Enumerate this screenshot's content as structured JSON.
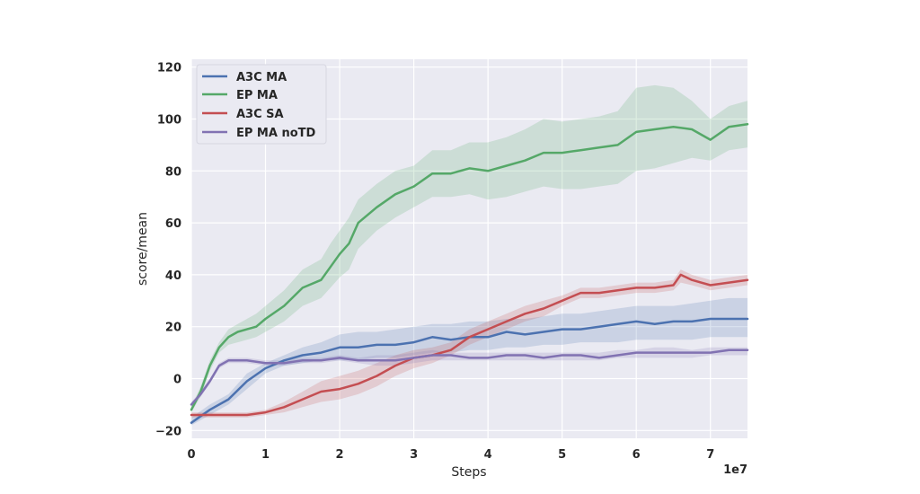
{
  "chart_data": {
    "type": "line",
    "xlabel": "Steps",
    "ylabel": "score/mean",
    "x_offset_label": "1e7",
    "xlim": [
      0,
      7.5
    ],
    "ylim": [
      -23,
      123
    ],
    "xticks": [
      0,
      1,
      2,
      3,
      4,
      5,
      6,
      7
    ],
    "xtick_labels": [
      "0",
      "1",
      "2",
      "3",
      "4",
      "5",
      "6",
      "7"
    ],
    "yticks": [
      -20,
      0,
      20,
      40,
      60,
      80,
      100,
      120
    ],
    "ytick_labels": [
      "−20",
      "0",
      "20",
      "40",
      "60",
      "80",
      "100",
      "120"
    ],
    "grid": true,
    "legend_position": "upper-left",
    "series": [
      {
        "name": "A3C MA",
        "color": "#4c72b0",
        "x": [
          0,
          0.25,
          0.5,
          0.75,
          1.0,
          1.25,
          1.5,
          1.75,
          2.0,
          2.25,
          2.5,
          2.75,
          3.0,
          3.25,
          3.5,
          3.75,
          4.0,
          4.25,
          4.5,
          4.75,
          5.0,
          5.25,
          5.5,
          5.75,
          6.0,
          6.25,
          6.5,
          6.75,
          7.0,
          7.25,
          7.5
        ],
        "y": [
          -17,
          -12,
          -8,
          -1,
          4,
          7,
          9,
          10,
          12,
          12,
          13,
          13,
          14,
          16,
          15,
          16,
          16,
          18,
          17,
          18,
          19,
          19,
          20,
          21,
          22,
          21,
          22,
          22,
          23,
          23,
          23
        ],
        "lower": [
          -18,
          -14,
          -10,
          -4,
          2,
          5,
          6,
          7,
          7,
          7,
          8,
          8,
          9,
          10,
          10,
          11,
          11,
          12,
          12,
          13,
          13,
          14,
          14,
          14,
          15,
          15,
          15,
          15,
          16,
          16,
          16
        ],
        "upper": [
          -15,
          -10,
          -6,
          2,
          6,
          9,
          12,
          14,
          17,
          18,
          18,
          19,
          20,
          21,
          21,
          22,
          22,
          23,
          23,
          24,
          25,
          25,
          26,
          27,
          28,
          28,
          28,
          29,
          30,
          31,
          31
        ]
      },
      {
        "name": "EP MA",
        "color": "#55a868",
        "x": [
          0,
          0.125,
          0.25,
          0.375,
          0.5,
          0.625,
          0.75,
          0.875,
          1.0,
          1.25,
          1.5,
          1.75,
          1.875,
          2.0,
          2.125,
          2.25,
          2.5,
          2.75,
          3.0,
          3.25,
          3.5,
          3.75,
          4.0,
          4.25,
          4.5,
          4.75,
          5.0,
          5.25,
          5.5,
          5.75,
          6.0,
          6.25,
          6.5,
          6.75,
          7.0,
          7.25,
          7.5
        ],
        "y": [
          -12,
          -5,
          5,
          12,
          16,
          18,
          19,
          20,
          23,
          28,
          35,
          38,
          43,
          48,
          52,
          60,
          66,
          71,
          74,
          79,
          79,
          81,
          80,
          82,
          84,
          87,
          87,
          88,
          89,
          90,
          95,
          96,
          97,
          96,
          92,
          97,
          98
        ],
        "lower": [
          -13,
          -7,
          3,
          10,
          13,
          14,
          15,
          16,
          18,
          22,
          28,
          31,
          35,
          39,
          42,
          50,
          57,
          62,
          66,
          70,
          70,
          71,
          69,
          70,
          72,
          74,
          73,
          73,
          74,
          75,
          80,
          81,
          83,
          85,
          84,
          88,
          89
        ],
        "upper": [
          -11,
          -3,
          7,
          14,
          19,
          21,
          23,
          25,
          28,
          34,
          42,
          46,
          52,
          57,
          62,
          69,
          75,
          80,
          82,
          88,
          88,
          91,
          91,
          93,
          96,
          100,
          99,
          100,
          101,
          103,
          112,
          113,
          112,
          107,
          100,
          105,
          107
        ]
      },
      {
        "name": "A3C SA",
        "color": "#c44e52",
        "x": [
          0,
          0.25,
          0.5,
          0.75,
          1.0,
          1.25,
          1.5,
          1.75,
          2.0,
          2.25,
          2.5,
          2.75,
          3.0,
          3.25,
          3.5,
          3.75,
          4.0,
          4.25,
          4.5,
          4.75,
          5.0,
          5.25,
          5.5,
          5.75,
          6.0,
          6.25,
          6.5,
          6.6,
          6.75,
          7.0,
          7.25,
          7.5
        ],
        "y": [
          -14,
          -14,
          -14,
          -14,
          -13,
          -11,
          -8,
          -5,
          -4,
          -2,
          1,
          5,
          8,
          9,
          11,
          16,
          19,
          22,
          25,
          27,
          30,
          33,
          33,
          34,
          35,
          35,
          36,
          40,
          38,
          36,
          37,
          38
        ],
        "lower": [
          -15,
          -15,
          -15,
          -15,
          -14,
          -13,
          -11,
          -9,
          -8,
          -6,
          -3,
          1,
          4,
          6,
          9,
          13,
          16,
          19,
          22,
          24,
          28,
          31,
          31,
          32,
          33,
          33,
          34,
          37,
          36,
          34,
          35,
          36
        ],
        "upper": [
          -13,
          -13,
          -13,
          -13,
          -12,
          -9,
          -5,
          -1,
          1,
          3,
          6,
          9,
          11,
          12,
          14,
          19,
          22,
          25,
          28,
          30,
          32,
          35,
          35,
          36,
          37,
          37,
          38,
          42,
          40,
          38,
          39,
          40
        ]
      },
      {
        "name": "EP MA noTD",
        "color": "#8172b2",
        "x": [
          0,
          0.125,
          0.25,
          0.375,
          0.5,
          0.75,
          1.0,
          1.25,
          1.5,
          1.75,
          2.0,
          2.25,
          2.5,
          2.75,
          3.0,
          3.25,
          3.5,
          3.75,
          4.0,
          4.25,
          4.5,
          4.75,
          5.0,
          5.25,
          5.5,
          5.75,
          6.0,
          6.25,
          6.5,
          6.75,
          7.0,
          7.25,
          7.5
        ],
        "y": [
          -10,
          -6,
          -1,
          5,
          7,
          7,
          6,
          6,
          7,
          7,
          8,
          7,
          7,
          7,
          8,
          9,
          9,
          8,
          8,
          9,
          9,
          8,
          9,
          9,
          8,
          9,
          10,
          10,
          10,
          10,
          10,
          11,
          11
        ],
        "lower": [
          -11,
          -7,
          -2,
          4,
          6,
          6,
          5,
          5,
          6,
          6,
          7,
          6,
          5,
          5,
          6,
          7,
          7,
          7,
          7,
          7,
          7,
          7,
          7,
          7,
          7,
          8,
          8,
          8,
          8,
          8,
          9,
          9,
          9
        ],
        "upper": [
          -9,
          -5,
          0,
          6,
          8,
          8,
          7,
          7,
          8,
          8,
          9,
          8,
          9,
          9,
          10,
          11,
          10,
          10,
          10,
          10,
          10,
          10,
          10,
          10,
          10,
          11,
          11,
          12,
          12,
          11,
          12,
          12,
          12
        ]
      }
    ]
  }
}
